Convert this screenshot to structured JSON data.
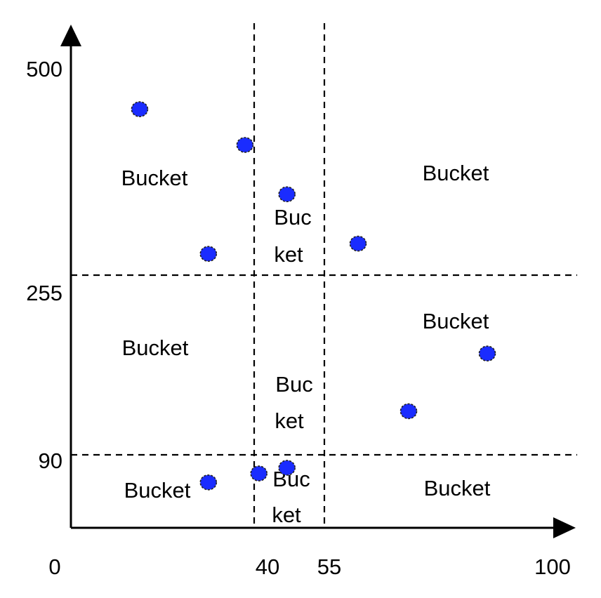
{
  "colors": {
    "point": "#1a2cff",
    "ink": "#000000"
  },
  "axes": {
    "x_ticks": [
      "0",
      "40",
      "55",
      "100"
    ],
    "y_ticks": [
      "500",
      "255",
      "90"
    ]
  },
  "buckets": [
    {
      "id": "upper-left",
      "lines": [
        "Bucket"
      ]
    },
    {
      "id": "upper-middle",
      "lines": [
        "Buc",
        "ket"
      ]
    },
    {
      "id": "upper-right",
      "lines": [
        "Bucket"
      ]
    },
    {
      "id": "middle-left",
      "lines": [
        "Bucket"
      ]
    },
    {
      "id": "center",
      "lines": [
        "Buc",
        "ket"
      ]
    },
    {
      "id": "middle-right",
      "lines": [
        "Bucket"
      ]
    },
    {
      "id": "lower-left",
      "lines": [
        "Bucket"
      ]
    },
    {
      "id": "lower-middle",
      "lines": [
        "Buc",
        "ket"
      ]
    },
    {
      "id": "lower-right",
      "lines": [
        "Bucket"
      ]
    }
  ],
  "points": [
    {
      "x": 15,
      "y": 450
    },
    {
      "x": 30,
      "y": 280
    },
    {
      "x": 38,
      "y": 408
    },
    {
      "x": 47,
      "y": 350
    },
    {
      "x": 61,
      "y": 292
    },
    {
      "x": 70,
      "y": 130
    },
    {
      "x": 84,
      "y": 183
    },
    {
      "x": 30,
      "y": 56
    },
    {
      "x": 41,
      "y": 67
    },
    {
      "x": 47,
      "y": 74
    }
  ]
}
